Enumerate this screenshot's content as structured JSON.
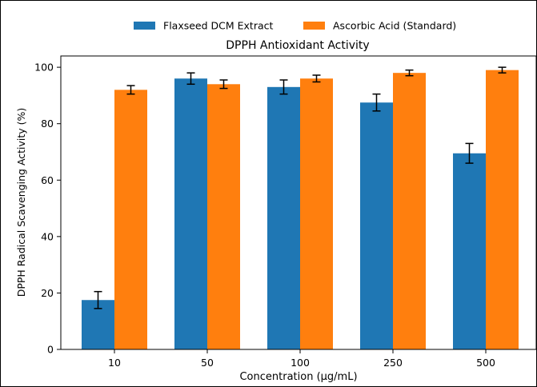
{
  "chart_data": {
    "type": "bar",
    "title": "DPPH Antioxidant Activity",
    "xlabel": "Concentration (µg/mL)",
    "ylabel": "DPPH Radical Scavenging Activity (%)",
    "categories": [
      "10",
      "50",
      "100",
      "250",
      "500"
    ],
    "series": [
      {
        "name": "Flaxseed DCM Extract",
        "color": "#1f77b4",
        "values": [
          17.5,
          96.0,
          93.0,
          87.5,
          69.5
        ],
        "errors": [
          3.0,
          2.0,
          2.5,
          3.0,
          3.5
        ]
      },
      {
        "name": "Ascorbic Acid (Standard)",
        "color": "#ff7f0e",
        "values": [
          92.0,
          94.0,
          96.0,
          98.0,
          99.0
        ],
        "errors": [
          1.5,
          1.5,
          1.2,
          1.0,
          1.0
        ]
      }
    ],
    "ylim": [
      0,
      104
    ],
    "yticks": [
      0,
      20,
      40,
      60,
      80,
      100
    ],
    "legend_position": "top-center",
    "grid": false
  }
}
